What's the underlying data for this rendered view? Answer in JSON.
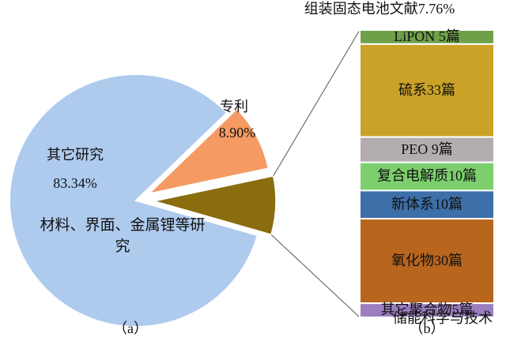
{
  "chart_data": [
    {
      "type": "pie",
      "categories": [
        "其它研究",
        "专利",
        null
      ],
      "values": [
        83.34,
        8.9,
        7.76
      ],
      "value_labels": [
        "83.34%",
        "8.90%",
        "组装固态电池文献7.76%"
      ],
      "colors": [
        "#aecbee",
        "#f49a62",
        "#8a6d0e"
      ],
      "annotation": "材料、界面、金属锂等研究",
      "caption": "（a）"
    },
    {
      "type": "stacked-bar",
      "values": [
        5,
        33,
        9,
        10,
        10,
        30,
        5
      ],
      "value_labels": [
        "LiPON 5篇",
        "硫系33篇",
        "PEO 9篇",
        "复合电解质10篇",
        "新体系10篇",
        "氧化物30篇",
        "其它聚合物5篇"
      ],
      "colors": [
        "#6ea04a",
        "#c9a227",
        "#b4adb0",
        "#7ccf6c",
        "#3d6fa8",
        "#b8651e",
        "#9b7fc0"
      ],
      "caption": "（b）"
    }
  ],
  "watermark": "储能科学与技术"
}
